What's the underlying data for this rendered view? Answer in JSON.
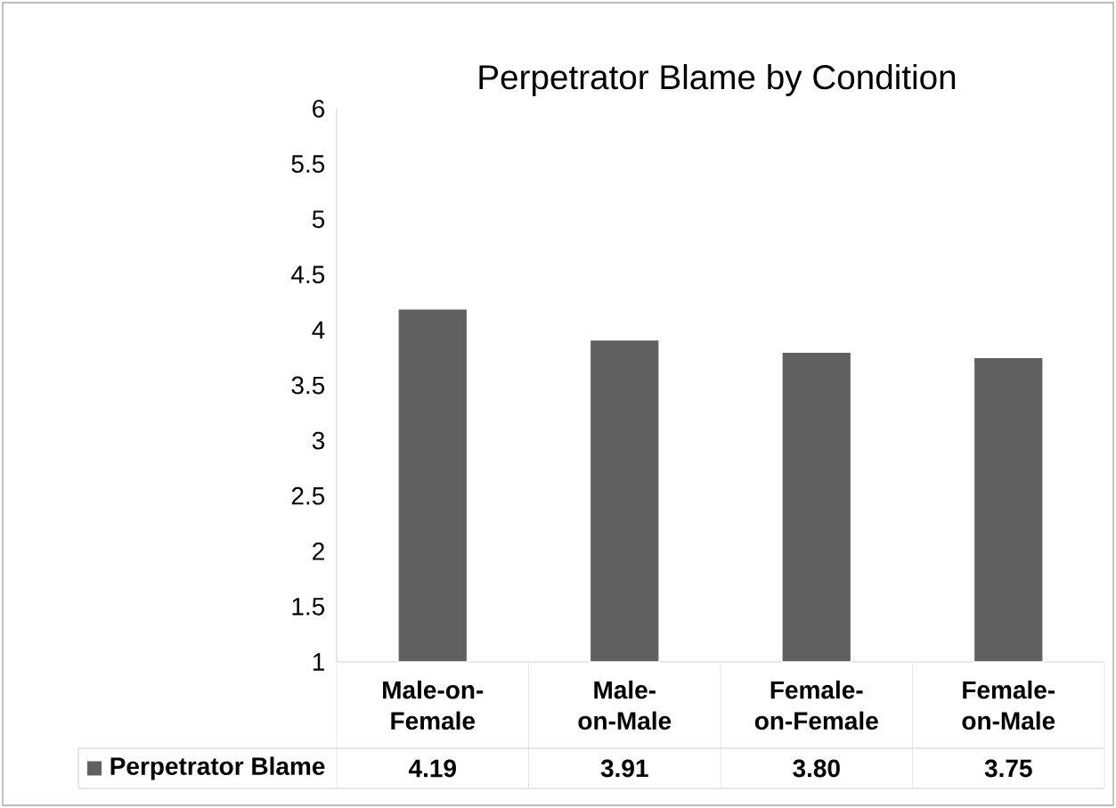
{
  "chart_data": {
    "type": "bar",
    "title": "Perpetrator Blame by Condition",
    "categories": [
      "Male-on-Female",
      "Male-on-Male",
      "Female-on-Female",
      "Female-on-Male"
    ],
    "series": [
      {
        "name": "Perpetrator Blame",
        "color": "#606060",
        "values": [
          4.19,
          3.91,
          3.8,
          3.75
        ],
        "value_labels": [
          "4.19",
          "3.91",
          "3.80",
          "3.75"
        ]
      }
    ],
    "ylim": [
      1,
      6
    ],
    "yticks": [
      1,
      1.5,
      2,
      2.5,
      3,
      3.5,
      4,
      4.5,
      5,
      5.5,
      6
    ],
    "grid": false,
    "legend": "bottom"
  }
}
